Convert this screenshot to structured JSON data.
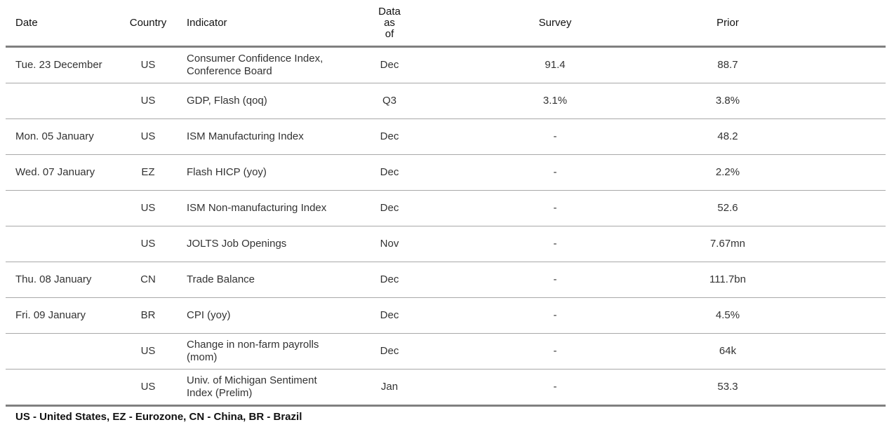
{
  "headers": {
    "date": "Date",
    "country": "Country",
    "indicator": "Indicator",
    "data_as_of": [
      "Data",
      "as",
      "of"
    ],
    "survey": "Survey",
    "prior": "Prior"
  },
  "rows": [
    {
      "date": "Tue. 23 December",
      "country": "US",
      "indicator": [
        "Consumer Confidence Index,",
        "Conference Board"
      ],
      "as_of": "Dec",
      "survey": "91.4",
      "prior": "88.7"
    },
    {
      "date": "",
      "country": "US",
      "indicator": [
        "GDP, Flash (qoq)"
      ],
      "as_of": "Q3",
      "survey": "3.1%",
      "prior": "3.8%"
    },
    {
      "date": "Mon. 05 January",
      "country": "US",
      "indicator": [
        "ISM Manufacturing Index"
      ],
      "as_of": "Dec",
      "survey": "-",
      "prior": "48.2"
    },
    {
      "date": "Wed. 07 January",
      "country": "EZ",
      "indicator": [
        "Flash HICP (yoy)"
      ],
      "as_of": "Dec",
      "survey": "-",
      "prior": "2.2%"
    },
    {
      "date": "",
      "country": "US",
      "indicator": [
        "ISM Non-manufacturing Index"
      ],
      "as_of": "Dec",
      "survey": "-",
      "prior": "52.6"
    },
    {
      "date": "",
      "country": "US",
      "indicator": [
        "JOLTS Job Openings"
      ],
      "as_of": "Nov",
      "survey": "-",
      "prior": "7.67mn"
    },
    {
      "date": "Thu. 08 January",
      "country": "CN",
      "indicator": [
        "Trade Balance"
      ],
      "as_of": "Dec",
      "survey": "-",
      "prior": "111.7bn"
    },
    {
      "date": "Fri. 09 January",
      "country": "BR",
      "indicator": [
        "CPI (yoy)"
      ],
      "as_of": "Dec",
      "survey": "-",
      "prior": "4.5%"
    },
    {
      "date": "",
      "country": "US",
      "indicator": [
        "Change in non-farm payrolls",
        "(mom)"
      ],
      "as_of": "Dec",
      "survey": "-",
      "prior": "64k"
    },
    {
      "date": "",
      "country": "US",
      "indicator": [
        "Univ. of Michigan Sentiment",
        "Index (Prelim)"
      ],
      "as_of": "Jan",
      "survey": "-",
      "prior": "53.3"
    }
  ],
  "footer": "US - United States, EZ - Eurozone, CN - China, BR - Brazil"
}
